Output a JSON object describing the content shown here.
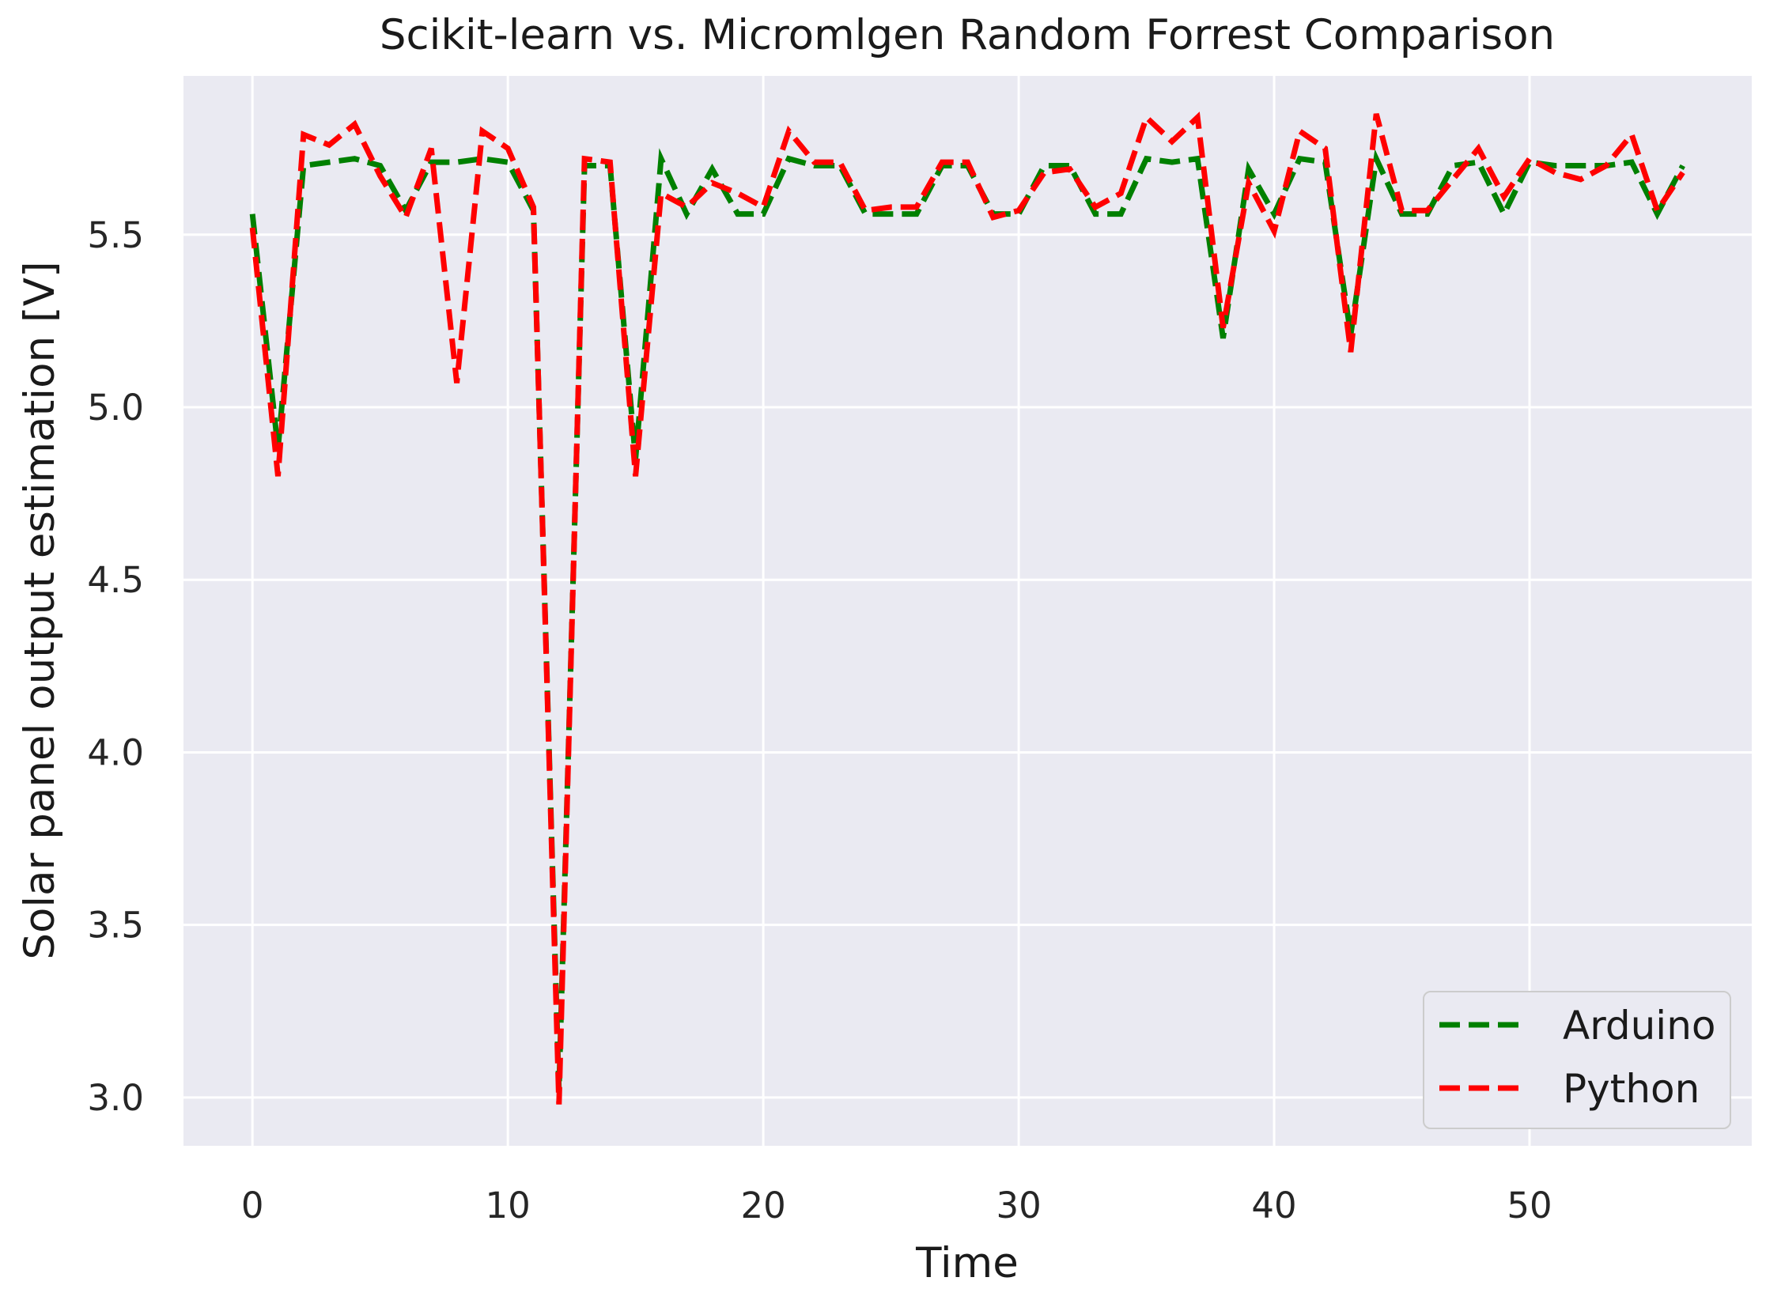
{
  "chart_data": {
    "type": "line",
    "title": "Scikit-learn vs. Micromlgen Random Forrest Comparison",
    "xlabel": "Time",
    "ylabel": "Solar panel output estimation [V]",
    "xlim": [
      -2.7,
      58.7
    ],
    "ylim": [
      2.86,
      5.96
    ],
    "xticks": [
      0,
      10,
      20,
      30,
      40,
      50
    ],
    "yticks": [
      3.0,
      3.5,
      4.0,
      4.5,
      5.0,
      5.5
    ],
    "ytick_labels": [
      "3.0",
      "3.5",
      "4.0",
      "4.5",
      "5.0",
      "5.5"
    ],
    "grid": true,
    "legend_position": "lower right",
    "x": [
      0,
      1,
      2,
      3,
      4,
      5,
      6,
      7,
      8,
      9,
      10,
      11,
      12,
      13,
      14,
      15,
      16,
      17,
      18,
      19,
      20,
      21,
      22,
      23,
      24,
      25,
      26,
      27,
      28,
      29,
      30,
      31,
      32,
      33,
      34,
      35,
      36,
      37,
      38,
      39,
      40,
      41,
      42,
      43,
      44,
      45,
      46,
      47,
      48,
      49,
      50,
      51,
      52,
      53,
      54,
      55,
      56
    ],
    "series": [
      {
        "name": "Arduino",
        "color": "#008000",
        "dash": "dashed",
        "values": [
          5.56,
          4.88,
          5.7,
          5.71,
          5.72,
          5.7,
          5.57,
          5.71,
          5.71,
          5.72,
          5.71,
          5.57,
          3.02,
          5.7,
          5.7,
          4.85,
          5.72,
          5.56,
          5.69,
          5.56,
          5.56,
          5.72,
          5.7,
          5.7,
          5.56,
          5.56,
          5.56,
          5.7,
          5.7,
          5.56,
          5.56,
          5.7,
          5.7,
          5.56,
          5.56,
          5.72,
          5.71,
          5.72,
          5.2,
          5.69,
          5.56,
          5.72,
          5.71,
          5.21,
          5.72,
          5.56,
          5.56,
          5.7,
          5.71,
          5.56,
          5.71,
          5.7,
          5.7,
          5.7,
          5.71,
          5.56,
          5.7
        ]
      },
      {
        "name": "Python",
        "color": "#ff0000",
        "dash": "dashed",
        "values": [
          5.52,
          4.8,
          5.79,
          5.76,
          5.82,
          5.67,
          5.55,
          5.75,
          5.07,
          5.8,
          5.75,
          5.58,
          2.98,
          5.72,
          5.71,
          4.8,
          5.62,
          5.58,
          5.65,
          5.62,
          5.58,
          5.8,
          5.71,
          5.71,
          5.57,
          5.58,
          5.58,
          5.71,
          5.71,
          5.55,
          5.57,
          5.68,
          5.69,
          5.58,
          5.62,
          5.84,
          5.77,
          5.84,
          5.23,
          5.65,
          5.51,
          5.8,
          5.75,
          5.16,
          5.85,
          5.57,
          5.57,
          5.66,
          5.75,
          5.61,
          5.72,
          5.68,
          5.66,
          5.7,
          5.79,
          5.57,
          5.68
        ]
      }
    ]
  }
}
